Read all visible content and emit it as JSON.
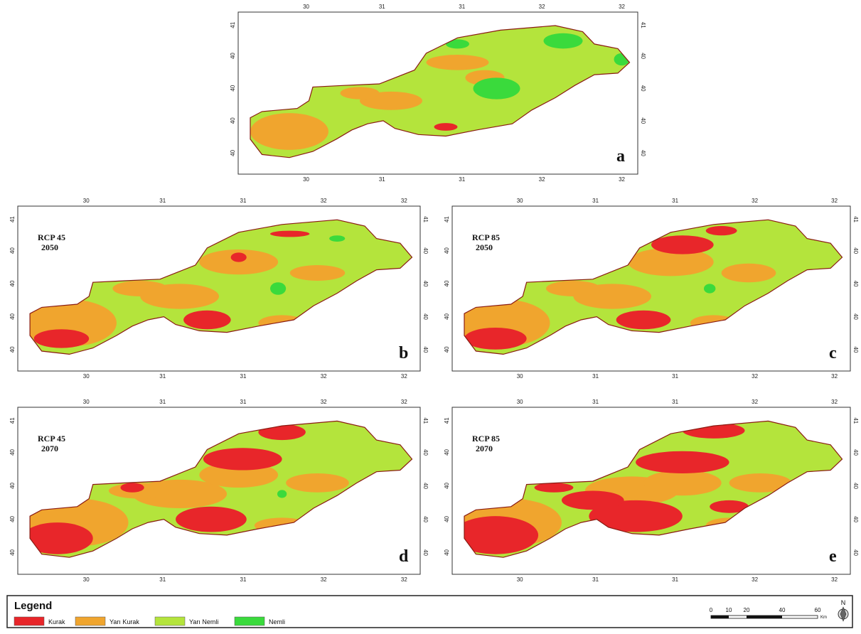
{
  "panels": [
    {
      "letter": "a",
      "ticks": {
        "top": [
          "30",
          "31",
          "31",
          "32",
          "32"
        ],
        "bottom": [
          "30",
          "31",
          "31",
          "32",
          "32"
        ],
        "left": [
          "41",
          "40",
          "40",
          "40",
          "40"
        ],
        "right": [
          "41",
          "40",
          "40",
          "40",
          "40"
        ]
      }
    },
    {
      "letter": "b",
      "scenario": "RCP 45",
      "year": "2050",
      "ticks": {
        "top": [
          "30",
          "31",
          "31",
          "32",
          "32"
        ],
        "bottom": [
          "30",
          "31",
          "31",
          "32",
          "32"
        ],
        "left": [
          "41",
          "40",
          "40",
          "40",
          "40"
        ],
        "right": [
          "41",
          "40",
          "40",
          "40",
          "40"
        ]
      }
    },
    {
      "letter": "c",
      "scenario": "RCP 85",
      "year": "2050",
      "ticks": {
        "top": [
          "30",
          "31",
          "31",
          "32",
          "32"
        ],
        "bottom": [
          "30",
          "31",
          "31",
          "32",
          "32"
        ],
        "left": [
          "41",
          "40",
          "40",
          "40",
          "40"
        ],
        "right": [
          "41",
          "40",
          "40",
          "40",
          "40"
        ]
      }
    },
    {
      "letter": "d",
      "scenario": "RCP 45",
      "year": "2070",
      "ticks": {
        "top": [
          "30",
          "31",
          "31",
          "32",
          "32"
        ],
        "bottom": [
          "30",
          "31",
          "31",
          "32",
          "32"
        ],
        "left": [
          "41",
          "40",
          "40",
          "40",
          "40"
        ],
        "right": [
          "41",
          "40",
          "40",
          "40",
          "40"
        ]
      }
    },
    {
      "letter": "e",
      "scenario": "RCP 85",
      "year": "2070",
      "ticks": {
        "top": [
          "30",
          "31",
          "31",
          "32",
          "32"
        ],
        "bottom": [
          "30",
          "31",
          "31",
          "32",
          "32"
        ],
        "left": [
          "41",
          "40",
          "40",
          "40",
          "40"
        ],
        "right": [
          "41",
          "40",
          "40",
          "40",
          "40"
        ]
      }
    }
  ],
  "legend": {
    "title": "Legend",
    "items": [
      {
        "label": "Kurak",
        "color": "#e8262a"
      },
      {
        "label": "Yarı Kurak",
        "color": "#f0a52e"
      },
      {
        "label": "Yarı Nemli",
        "color": "#b4e43c"
      },
      {
        "label": "Nemli",
        "color": "#3ada3c"
      }
    ]
  },
  "scale": {
    "labels": [
      "0",
      "10",
      "20",
      "40",
      "60"
    ],
    "unit": "Km"
  },
  "north": "N"
}
